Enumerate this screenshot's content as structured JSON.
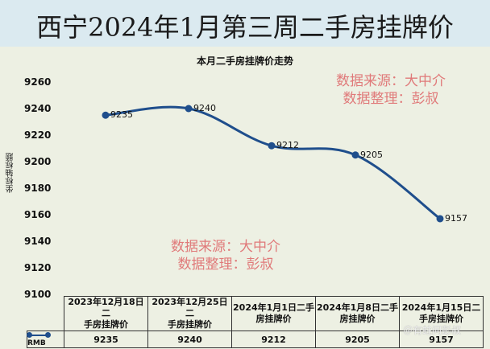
{
  "header": {
    "title": "西宁2024年1月第三周二手房挂牌价"
  },
  "watermarks": {
    "source_label": "数据来源：大中介",
    "editor_label": "数据整理：彭叔"
  },
  "credit": "＠有蛀问彭叔",
  "colors": {
    "series": "#1f4e8c",
    "title_bg": "#dbeaf0",
    "plot_bg": "#edf0e3",
    "watermark": "#e07a7a"
  },
  "chart_data": {
    "type": "line",
    "title": "本月二手房挂牌价走势",
    "xlabel": "",
    "ylabel": "坐标轴标题",
    "ylim": [
      9100,
      9260
    ],
    "yticks": [
      9260,
      9240,
      9220,
      9200,
      9180,
      9160,
      9140,
      9120,
      9100
    ],
    "grid": false,
    "smooth": true,
    "legend_position": "data-table",
    "categories": [
      "2023年12月18日二手房挂牌价",
      "2023年12月25日二手房挂牌价",
      "2024年1月1日二手房挂牌价",
      "2024年1月8日二手房挂牌价",
      "2024年1月15日二手房挂牌价"
    ],
    "series": [
      {
        "name": "RMB",
        "values": [
          9235,
          9240,
          9212,
          9205,
          9157
        ]
      }
    ]
  },
  "table": {
    "header_lines": [
      [
        "2023年12月18日二",
        "手房挂牌价"
      ],
      [
        "2023年12月25日二",
        "手房挂牌价"
      ],
      [
        "2024年1月1日二手",
        "房挂牌价"
      ],
      [
        "2024年1月8日二手",
        "房挂牌价"
      ],
      [
        "2024年1月15日二",
        "手房挂牌价"
      ]
    ],
    "legend_label": "RMB",
    "values": [
      "9235",
      "9240",
      "9212",
      "9205",
      "9157"
    ]
  }
}
